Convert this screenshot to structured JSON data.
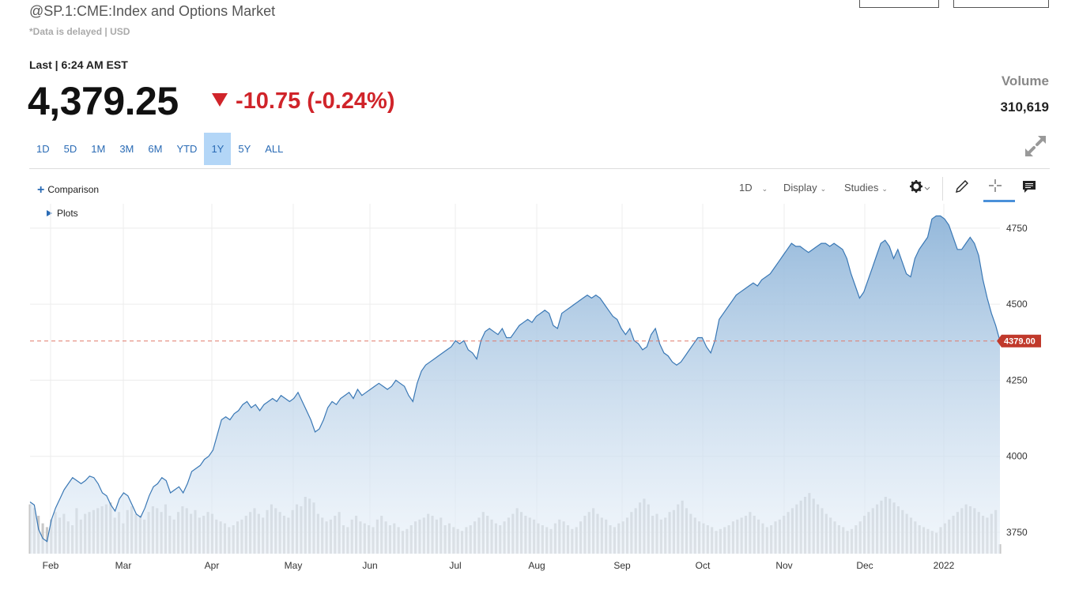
{
  "header": {
    "title": "@SP.1:CME:Index and Options Market",
    "subtitle": "*Data is delayed | USD"
  },
  "quote": {
    "last_label": "Last | 6:24 AM EST",
    "price": "4,379.25",
    "change": "-10.75 (-0.24%)",
    "volume_label": "Volume",
    "volume_value": "310,619"
  },
  "ranges": [
    {
      "label": "1D",
      "active": false
    },
    {
      "label": "5D",
      "active": false
    },
    {
      "label": "1M",
      "active": false
    },
    {
      "label": "3M",
      "active": false
    },
    {
      "label": "6M",
      "active": false
    },
    {
      "label": "YTD",
      "active": false
    },
    {
      "label": "1Y",
      "active": true
    },
    {
      "label": "5Y",
      "active": false
    },
    {
      "label": "ALL",
      "active": false
    }
  ],
  "chart_controls": {
    "comparison": "Comparison",
    "plots": "Plots",
    "interval": "1D",
    "display": "Display",
    "studies": "Studies"
  },
  "icons": {
    "expand": "expand-arrows-icon",
    "settings": "gear-icon",
    "draw": "pencil-icon",
    "crosshair": "crosshair-icon",
    "comment": "comment-icon"
  },
  "colors": {
    "accent": "#2a6bb5",
    "negative": "#d0242a",
    "line": "#3a78b5",
    "price_marker": "#c0392b"
  },
  "chart_data": {
    "type": "area",
    "title": "",
    "xlabel": "",
    "ylabel": "",
    "x_ticks": [
      "Feb",
      "Mar",
      "Apr",
      "May",
      "Jun",
      "Jul",
      "Aug",
      "Sep",
      "Oct",
      "Nov",
      "Dec",
      "2022"
    ],
    "y_ticks": [
      3750,
      4000,
      4250,
      4500,
      4750
    ],
    "ylim": [
      3680,
      4830
    ],
    "grid": true,
    "current_price_label": "4379.00",
    "current_price": 4379,
    "series": [
      {
        "values": [
          3850,
          3840,
          3760,
          3730,
          3720,
          3790,
          3830,
          3860,
          3890,
          3910,
          3930,
          3920,
          3910,
          3920,
          3935,
          3930,
          3910,
          3880,
          3870,
          3840,
          3820,
          3860,
          3880,
          3870,
          3840,
          3810,
          3800,
          3830,
          3870,
          3900,
          3910,
          3930,
          3920,
          3880,
          3890,
          3900,
          3880,
          3910,
          3950,
          3960,
          3970,
          3990,
          4000,
          4020,
          4070,
          4120,
          4130,
          4120,
          4140,
          4150,
          4170,
          4180,
          4160,
          4170,
          4150,
          4170,
          4180,
          4190,
          4180,
          4200,
          4190,
          4180,
          4190,
          4210,
          4180,
          4150,
          4120,
          4080,
          4090,
          4120,
          4160,
          4180,
          4170,
          4190,
          4200,
          4210,
          4190,
          4220,
          4200,
          4210,
          4220,
          4230,
          4240,
          4230,
          4220,
          4230,
          4250,
          4240,
          4230,
          4200,
          4180,
          4240,
          4280,
          4300,
          4310,
          4320,
          4330,
          4340,
          4350,
          4360,
          4380,
          4370,
          4380,
          4350,
          4340,
          4320,
          4380,
          4410,
          4420,
          4410,
          4400,
          4420,
          4390,
          4390,
          4410,
          4430,
          4440,
          4450,
          4440,
          4460,
          4470,
          4480,
          4470,
          4430,
          4420,
          4470,
          4480,
          4490,
          4500,
          4510,
          4520,
          4530,
          4520,
          4530,
          4520,
          4500,
          4480,
          4460,
          4450,
          4420,
          4400,
          4420,
          4380,
          4370,
          4350,
          4360,
          4400,
          4420,
          4370,
          4340,
          4330,
          4310,
          4300,
          4310,
          4330,
          4350,
          4370,
          4390,
          4390,
          4360,
          4340,
          4380,
          4450,
          4470,
          4490,
          4510,
          4530,
          4540,
          4550,
          4560,
          4570,
          4560,
          4580,
          4590,
          4600,
          4620,
          4640,
          4660,
          4680,
          4700,
          4690,
          4690,
          4680,
          4670,
          4680,
          4690,
          4700,
          4700,
          4690,
          4700,
          4690,
          4680,
          4650,
          4600,
          4560,
          4520,
          4540,
          4580,
          4620,
          4660,
          4700,
          4710,
          4690,
          4650,
          4680,
          4640,
          4600,
          4590,
          4650,
          4680,
          4700,
          4720,
          4780,
          4790,
          4790,
          4780,
          4760,
          4720,
          4680,
          4680,
          4700,
          4720,
          4700,
          4660,
          4580,
          4520,
          4470,
          4430,
          4379
        ]
      }
    ],
    "volume_values": [
      52,
      48,
      40,
      32,
      28,
      36,
      44,
      38,
      42,
      34,
      30,
      48,
      36,
      42,
      44,
      46,
      48,
      50,
      52,
      54,
      38,
      44,
      32,
      46,
      50,
      42,
      40,
      36,
      44,
      50,
      48,
      44,
      52,
      40,
      36,
      44,
      50,
      48,
      42,
      46,
      38,
      40,
      44,
      42,
      36,
      34,
      32,
      28,
      30,
      34,
      36,
      40,
      44,
      48,
      42,
      38,
      46,
      52,
      48,
      44,
      40,
      38,
      46,
      52,
      50,
      60,
      58,
      54,
      42,
      38,
      34,
      36,
      40,
      44,
      30,
      28,
      36,
      40,
      34,
      32,
      30,
      28,
      36,
      40,
      34,
      30,
      32,
      28,
      24,
      26,
      30,
      34,
      36,
      38,
      42,
      40,
      36,
      38,
      30,
      32,
      28,
      26,
      24,
      28,
      30,
      34,
      38,
      44,
      40,
      36,
      32,
      30,
      34,
      38,
      42,
      48,
      44,
      40,
      38,
      36,
      32,
      30,
      28,
      26,
      32,
      36,
      34,
      30,
      26,
      28,
      34,
      40,
      44,
      48,
      42,
      38,
      36,
      30,
      28,
      32,
      34,
      38,
      44,
      48,
      54,
      58,
      52,
      40,
      42,
      36,
      38,
      44,
      46,
      52,
      56,
      48,
      42,
      38,
      34,
      32,
      30,
      28,
      24,
      26,
      28,
      30,
      34,
      36,
      38,
      40,
      44,
      40,
      36,
      32,
      28,
      30,
      34,
      36,
      40,
      44,
      48,
      52,
      56,
      60,
      64,
      58,
      52,
      48,
      42,
      38,
      34,
      30,
      28,
      24,
      26,
      30,
      34,
      40,
      44,
      48,
      52,
      56,
      60,
      58,
      54,
      50,
      46,
      42,
      38,
      34,
      30,
      28,
      26,
      24,
      22,
      28,
      32,
      36,
      40,
      44,
      48,
      52,
      50,
      48,
      44,
      40,
      38,
      42,
      46,
      10
    ]
  }
}
